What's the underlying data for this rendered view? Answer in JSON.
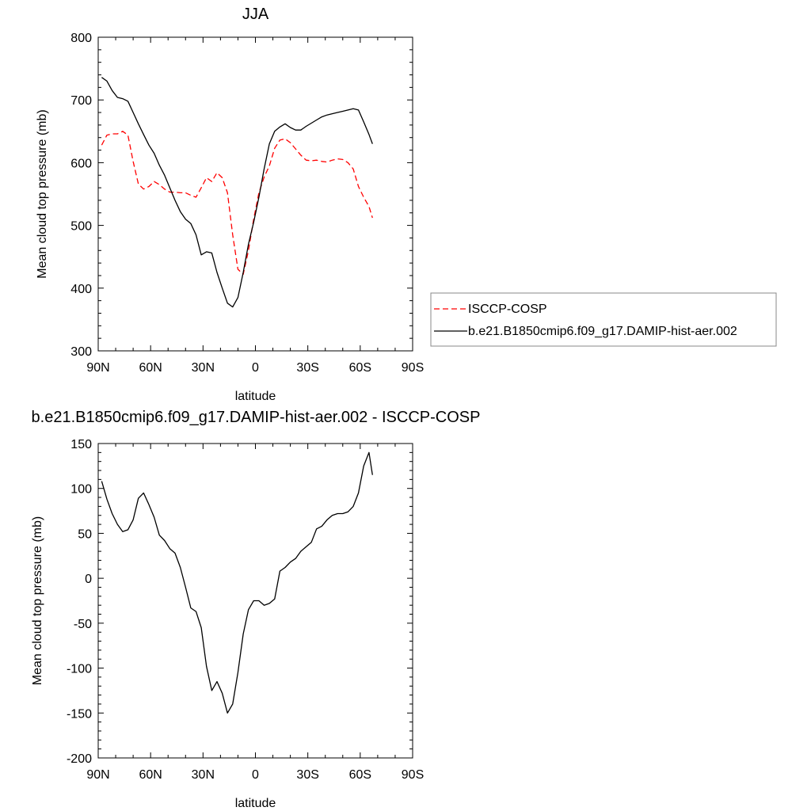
{
  "chart_data": [
    {
      "type": "line",
      "title": "JJA",
      "xlabel": "latitude",
      "ylabel": "Mean cloud top pressure (mb)",
      "xlim": [
        -90,
        90
      ],
      "ylim": [
        300,
        800
      ],
      "x_ticks": [
        {
          "value": -90,
          "label": "90N"
        },
        {
          "value": -60,
          "label": "60N"
        },
        {
          "value": -30,
          "label": "30N"
        },
        {
          "value": 0,
          "label": "0"
        },
        {
          "value": 30,
          "label": "30S"
        },
        {
          "value": 60,
          "label": "60S"
        },
        {
          "value": 90,
          "label": "90S"
        }
      ],
      "y_ticks": [
        300,
        400,
        500,
        600,
        700,
        800
      ],
      "legend_position": "right",
      "series": [
        {
          "name": "ISCCP-COSP",
          "color": "#ff0000",
          "dash": "dashed",
          "x": [
            -88,
            -85,
            -82,
            -79,
            -76,
            -73,
            -70,
            -67,
            -64,
            -61,
            -58,
            -55,
            -52,
            -49,
            -46,
            -43,
            -40,
            -37,
            -34,
            -31,
            -28,
            -25,
            -22,
            -19,
            -16,
            -13,
            -10,
            -7,
            -4,
            -1,
            2,
            5,
            8,
            11,
            14,
            17,
            20,
            23,
            26,
            29,
            32,
            35,
            38,
            41,
            44,
            47,
            50,
            53,
            56,
            59,
            62,
            65,
            67
          ],
          "y": [
            628,
            644,
            646,
            646,
            650,
            644,
            602,
            566,
            558,
            562,
            570,
            565,
            558,
            553,
            553,
            552,
            552,
            548,
            545,
            560,
            576,
            570,
            584,
            576,
            552,
            485,
            430,
            422,
            460,
            510,
            552,
            577,
            595,
            623,
            636,
            638,
            632,
            622,
            612,
            604,
            603,
            604,
            602,
            601,
            604,
            606,
            605,
            600,
            590,
            562,
            545,
            530,
            512
          ]
        },
        {
          "name": "b.e21.B1850cmip6.f09_g17.DAMIP-hist-aer.002",
          "color": "#000000",
          "dash": "solid",
          "x": [
            -88,
            -85,
            -82,
            -79,
            -76,
            -73,
            -70,
            -67,
            -64,
            -61,
            -58,
            -55,
            -52,
            -49,
            -46,
            -43,
            -40,
            -37,
            -34,
            -31,
            -28,
            -25,
            -22,
            -19,
            -16,
            -13,
            -10,
            -7,
            -4,
            -1,
            2,
            5,
            8,
            11,
            14,
            17,
            20,
            23,
            26,
            29,
            32,
            35,
            38,
            41,
            44,
            47,
            50,
            53,
            56,
            59,
            62,
            65,
            67
          ],
          "y": [
            736,
            730,
            715,
            704,
            702,
            698,
            680,
            662,
            645,
            628,
            615,
            596,
            580,
            560,
            540,
            522,
            510,
            503,
            485,
            453,
            458,
            456,
            425,
            400,
            376,
            370,
            385,
            425,
            470,
            505,
            545,
            590,
            630,
            650,
            657,
            662,
            656,
            652,
            652,
            658,
            663,
            668,
            673,
            676,
            678,
            680,
            682,
            684,
            686,
            684,
            665,
            645,
            630
          ]
        }
      ]
    },
    {
      "type": "line",
      "title": "b.e21.B1850cmip6.f09_g17.DAMIP-hist-aer.002 - ISCCP-COSP",
      "xlabel": "latitude",
      "ylabel": "Mean cloud top pressure (mb)",
      "xlim": [
        -90,
        90
      ],
      "ylim": [
        -200,
        150
      ],
      "x_ticks": [
        {
          "value": -90,
          "label": "90N"
        },
        {
          "value": -60,
          "label": "60N"
        },
        {
          "value": -30,
          "label": "30N"
        },
        {
          "value": 0,
          "label": "0"
        },
        {
          "value": 30,
          "label": "30S"
        },
        {
          "value": 60,
          "label": "60S"
        },
        {
          "value": 90,
          "label": "90S"
        }
      ],
      "y_ticks": [
        -200,
        -150,
        -100,
        -50,
        0,
        50,
        100,
        150
      ],
      "series": [
        {
          "color": "#000000",
          "dash": "solid",
          "x": [
            -88,
            -85,
            -82,
            -79,
            -76,
            -73,
            -70,
            -67,
            -64,
            -61,
            -58,
            -55,
            -52,
            -49,
            -46,
            -43,
            -40,
            -37,
            -34,
            -31,
            -28,
            -25,
            -22,
            -19,
            -16,
            -13,
            -10,
            -7,
            -4,
            -1,
            2,
            5,
            8,
            11,
            14,
            17,
            20,
            23,
            26,
            29,
            32,
            35,
            38,
            41,
            44,
            47,
            50,
            53,
            56,
            59,
            62,
            65,
            67
          ],
          "y": [
            108,
            88,
            72,
            60,
            52,
            54,
            65,
            89,
            95,
            82,
            68,
            48,
            42,
            33,
            28,
            12,
            -10,
            -33,
            -37,
            -55,
            -98,
            -125,
            -115,
            -128,
            -150,
            -140,
            -105,
            -62,
            -35,
            -25,
            -25,
            -30,
            -28,
            -23,
            8,
            12,
            18,
            22,
            30,
            35,
            40,
            55,
            58,
            65,
            70,
            72,
            72,
            74,
            80,
            95,
            125,
            140,
            115
          ]
        }
      ]
    }
  ]
}
